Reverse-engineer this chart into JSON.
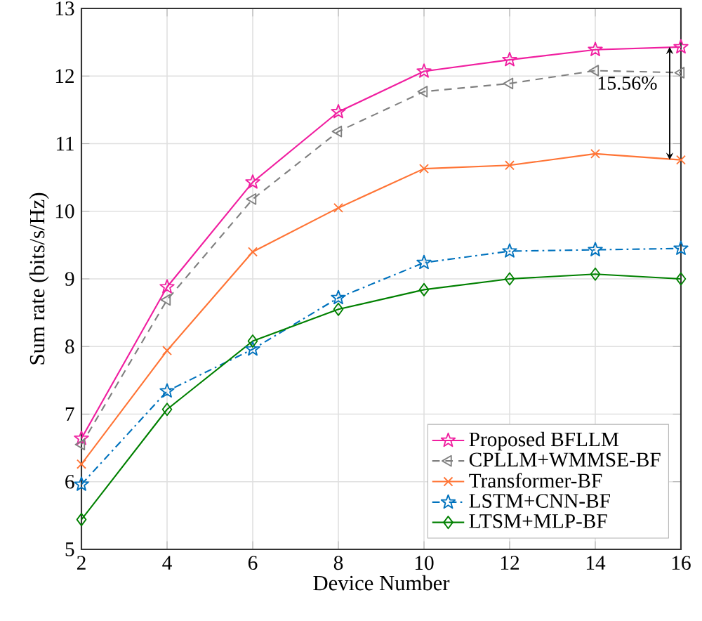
{
  "chart_data": {
    "type": "line",
    "xlabel": "Device Number",
    "ylabel": "Sum rate (bits/s/Hz)",
    "x": [
      2,
      4,
      6,
      8,
      10,
      12,
      14,
      16
    ],
    "series": [
      {
        "name": "Proposed BFLLM",
        "color": "#f01fa0",
        "marker": "star",
        "line_style": "solid",
        "values": [
          6.64,
          8.88,
          10.43,
          11.47,
          12.07,
          12.24,
          12.39,
          12.43
        ]
      },
      {
        "name": "CPLLM+WMMSE-BF",
        "color": "#808080",
        "marker": "triangle",
        "line_style": "dashed",
        "values": [
          6.55,
          8.69,
          10.18,
          11.18,
          11.77,
          11.89,
          12.08,
          12.05
        ]
      },
      {
        "name": "Transformer-BF",
        "color": "#ff7435",
        "marker": "cross",
        "line_style": "solid",
        "values": [
          6.26,
          7.94,
          9.4,
          10.05,
          10.63,
          10.68,
          10.85,
          10.76
        ]
      },
      {
        "name": "LSTM+CNN-BF",
        "color": "#0072bd",
        "marker": "star",
        "line_style": "dashdot",
        "values": [
          5.96,
          7.34,
          7.96,
          8.72,
          9.24,
          9.41,
          9.43,
          9.45
        ]
      },
      {
        "name": "LTSM+MLP-BF",
        "color": "#008000",
        "marker": "diamond",
        "line_style": "solid",
        "values": [
          5.44,
          7.07,
          8.08,
          8.55,
          8.84,
          9.0,
          9.07,
          9.0
        ]
      }
    ],
    "annotations": [
      "15.56%"
    ],
    "xlim": [
      2,
      16
    ],
    "xticks": [
      2,
      4,
      6,
      8,
      10,
      12,
      14,
      16
    ],
    "ylim": [
      5,
      13
    ],
    "yticks": [
      5,
      6,
      7,
      8,
      9,
      10,
      11,
      12,
      13
    ],
    "grid": true,
    "legend": "bottom right"
  }
}
